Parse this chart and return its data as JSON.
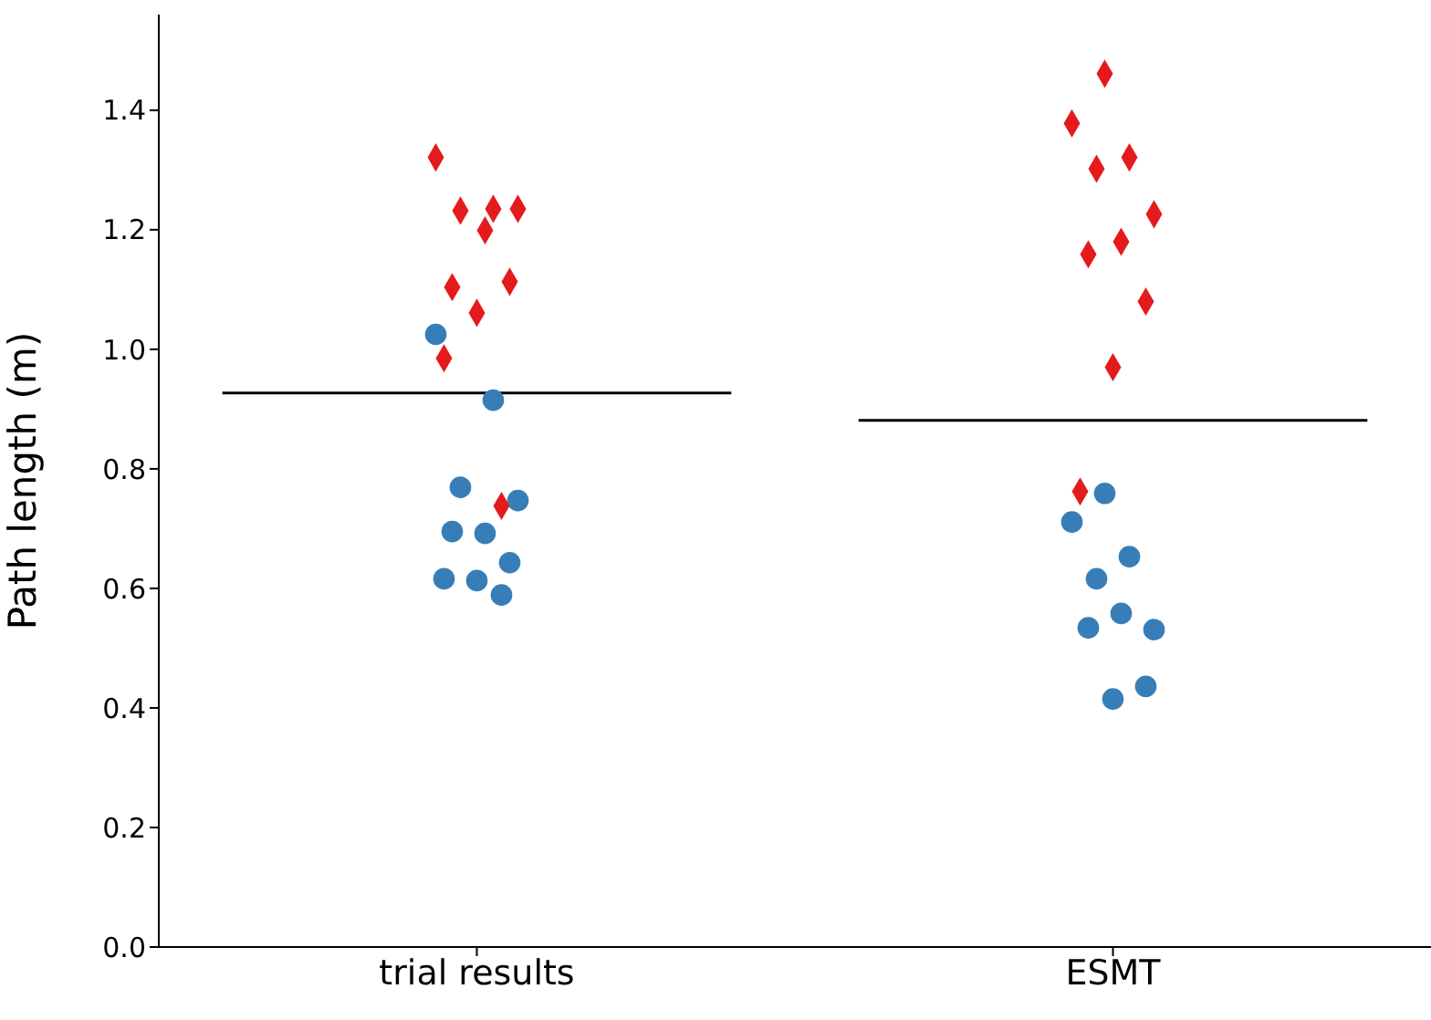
{
  "chart_data": {
    "type": "scatter",
    "ylabel": "Path length (m)",
    "categories": [
      "trial results",
      "ESMT"
    ],
    "ylim": [
      0,
      1.56
    ],
    "yticks": [
      {
        "value": 0,
        "label": "0.0"
      },
      {
        "value": 0.2,
        "label": "0.2"
      },
      {
        "value": 0.4,
        "label": "0.4"
      },
      {
        "value": 0.6,
        "label": "0.6"
      },
      {
        "value": 0.8,
        "label": "0.8"
      },
      {
        "value": 1.0,
        "label": "1.0"
      },
      {
        "value": 1.2,
        "label": "1.2"
      },
      {
        "value": 1.4,
        "label": "1.4"
      }
    ],
    "grid": false,
    "legend": false,
    "series": [
      {
        "marker": "circle",
        "color": "#377eb8",
        "x": [
          "trial results",
          "trial results",
          "trial results",
          "trial results",
          "trial results",
          "trial results",
          "trial results",
          "trial results",
          "trial results",
          "trial results",
          "ESMT",
          "ESMT",
          "ESMT",
          "ESMT",
          "ESMT",
          "ESMT",
          "ESMT",
          "ESMT",
          "ESMT"
        ],
        "values": [
          1.025,
          0.915,
          0.769,
          0.747,
          0.692,
          0.695,
          0.643,
          0.613,
          0.616,
          0.589,
          0.759,
          0.711,
          0.653,
          0.616,
          0.531,
          0.558,
          0.534,
          0.436,
          0.415
        ]
      },
      {
        "marker": "diamond",
        "color": "#e41a1c",
        "x": [
          "trial results",
          "trial results",
          "trial results",
          "trial results",
          "trial results",
          "trial results",
          "trial results",
          "trial results",
          "trial results",
          "trial results",
          "ESMT",
          "ESMT",
          "ESMT",
          "ESMT",
          "ESMT",
          "ESMT",
          "ESMT",
          "ESMT",
          "ESMT",
          "ESMT"
        ],
        "values": [
          1.321,
          1.235,
          1.232,
          1.235,
          1.199,
          1.104,
          1.113,
          1.061,
          0.985,
          0.738,
          1.461,
          1.378,
          1.321,
          1.302,
          1.226,
          1.18,
          1.159,
          1.08,
          0.97,
          0.762
        ]
      }
    ],
    "ref_lines": [
      {
        "axis": "y",
        "value": 0.927,
        "color": "#000000",
        "line_style": "solid"
      },
      {
        "axis": "y",
        "value": 0.881,
        "color": "#000000",
        "line_style": "solid"
      }
    ]
  }
}
